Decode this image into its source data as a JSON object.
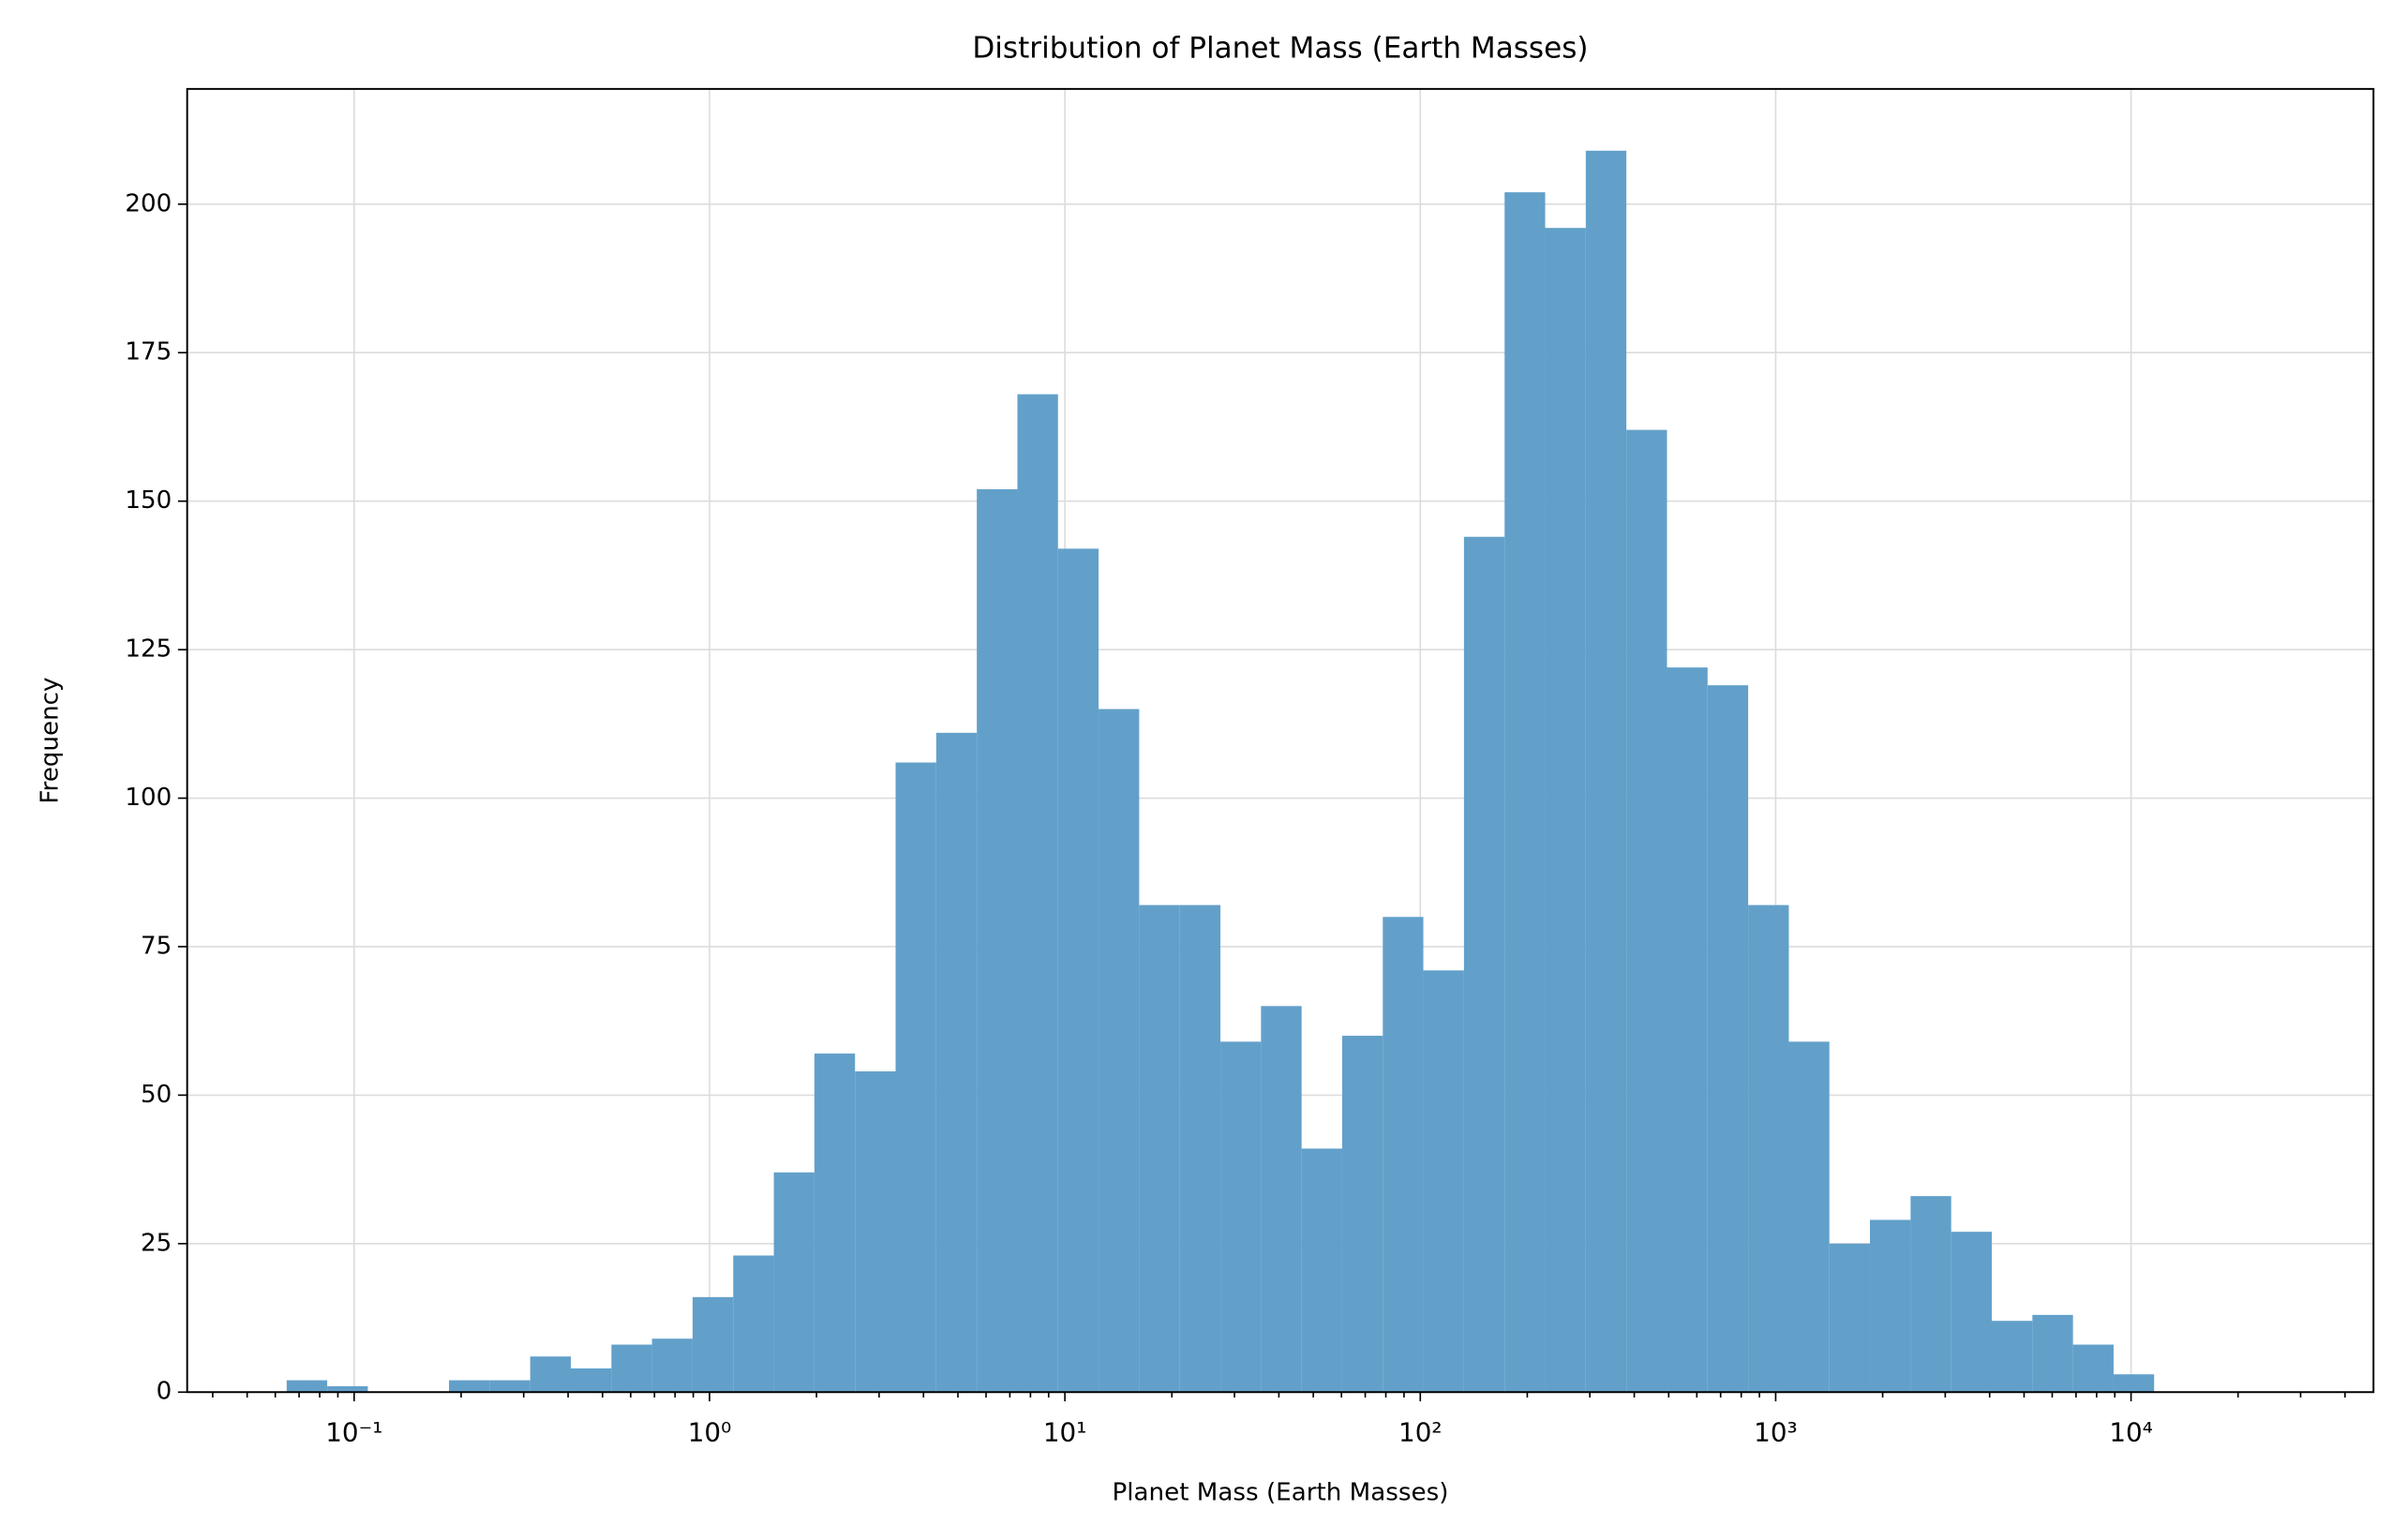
{
  "chart_data": {
    "type": "histogram",
    "title": "Distribution of Planet Mass (Earth Masses)",
    "x_label": "Planet Mass (Earth Masses)",
    "y_label": "Frequency",
    "bins": [
      0.0646,
      0.084,
      0.1093,
      0.1421,
      0.1849,
      0.2405,
      0.3129,
      0.4071,
      0.5296,
      0.6889,
      0.8962,
      1.166,
      1.517,
      1.973,
      2.567,
      3.339,
      4.344,
      5.651,
      7.352,
      9.563,
      12.44,
      16.18,
      21.05,
      27.39,
      35.63,
      46.35,
      60.29,
      78.44,
      102.0,
      132.7,
      172.7,
      224.6,
      292.2,
      380.1,
      494.5,
      643.3,
      836.8,
      1089,
      1416,
      1842,
      2397,
      3118,
      4056,
      5277,
      6864,
      8930,
      11610
    ],
    "values": [
      2,
      1,
      0,
      0,
      2,
      2,
      6,
      4,
      8,
      9,
      16,
      23,
      37,
      57,
      54,
      106,
      111,
      152,
      168,
      142,
      115,
      82,
      82,
      59,
      65,
      41,
      60,
      80,
      71,
      144,
      202,
      196,
      209,
      162,
      122,
      119,
      82,
      59,
      25,
      29,
      33,
      27,
      12,
      13,
      8,
      3
    ],
    "color": "#62a0ca",
    "xscale": "log",
    "xlim": [
      0.0339,
      48100
    ],
    "xticks": [
      {
        "value": 0.1,
        "label": "10⁻¹"
      },
      {
        "value": 1,
        "label": "10⁰"
      },
      {
        "value": 10,
        "label": "10¹"
      },
      {
        "value": 100,
        "label": "10²"
      },
      {
        "value": 1000,
        "label": "10³"
      },
      {
        "value": 10000,
        "label": "10⁴"
      }
    ],
    "xminorticks": [
      0.04,
      0.05,
      0.06,
      0.07,
      0.08,
      0.09,
      0.2,
      0.3,
      0.4,
      0.5,
      0.6,
      0.7,
      0.8,
      0.9,
      2,
      3,
      4,
      5,
      6,
      7,
      8,
      9,
      20,
      30,
      40,
      50,
      60,
      70,
      80,
      90,
      200,
      300,
      400,
      500,
      600,
      700,
      800,
      900,
      2000,
      3000,
      4000,
      5000,
      6000,
      7000,
      8000,
      9000,
      20000,
      30000,
      40000
    ],
    "ylim": [
      0,
      219.4
    ],
    "yticks": [
      0,
      25,
      50,
      75,
      100,
      125,
      150,
      175,
      200
    ],
    "grid": true
  }
}
